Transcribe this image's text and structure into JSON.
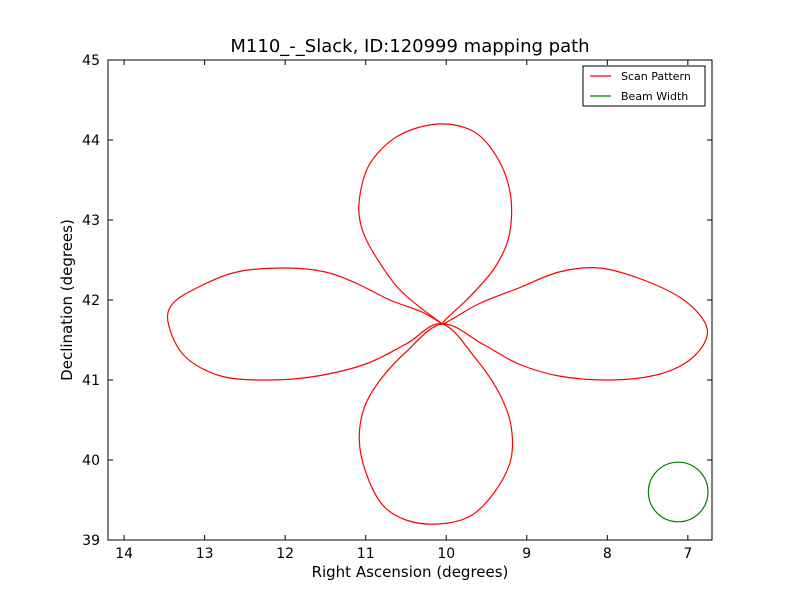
{
  "chart_data": {
    "type": "line",
    "title": "M110_-_Slack, ID:120999 mapping path",
    "xlabel": "Right Ascension (degrees)",
    "ylabel": "Declination (degrees)",
    "xlim": [
      14.2,
      6.7
    ],
    "ylim": [
      39,
      45
    ],
    "x_reversed": true,
    "xticks": [
      14,
      13,
      12,
      11,
      10,
      9,
      8,
      7
    ],
    "yticks": [
      39,
      40,
      41,
      42,
      43,
      44,
      45
    ],
    "grid": false,
    "legend": {
      "placement": "top-right",
      "entries": [
        "Scan Pattern",
        "Beam Width"
      ]
    },
    "series": [
      {
        "name": "Scan Pattern",
        "color": "#ff0000",
        "shape": "four-petal rosette centered near RA 10.05, Dec 41.7",
        "x": [
          10.05,
          10.55,
          10.88,
          11.05,
          11.08,
          10.95,
          10.6,
          10.1,
          9.65,
          9.35,
          9.2,
          9.22,
          9.4,
          9.7,
          10.05,
          9.6,
          9.1,
          8.6,
          8.1,
          7.55,
          7.05,
          6.78,
          6.8,
          7.05,
          7.45,
          8.0,
          8.6,
          9.1,
          9.55,
          10.05,
          10.5,
          10.82,
          11.02,
          11.08,
          11.0,
          10.8,
          10.5,
          10.1,
          9.7,
          9.4,
          9.2,
          9.2,
          9.35,
          9.62,
          10.05,
          10.5,
          11.0,
          11.6,
          12.2,
          12.8,
          13.25,
          13.45,
          13.4,
          13.1,
          12.6,
          12.0,
          11.5,
          11.1,
          10.7,
          10.3,
          10.05
        ],
        "y": [
          41.7,
          42.1,
          42.55,
          42.9,
          43.25,
          43.7,
          44.05,
          44.2,
          44.1,
          43.75,
          43.3,
          42.8,
          42.4,
          42.05,
          41.7,
          41.95,
          42.15,
          42.35,
          42.4,
          42.25,
          42.0,
          41.7,
          41.45,
          41.2,
          41.05,
          41.0,
          41.05,
          41.2,
          41.45,
          41.7,
          41.35,
          41.0,
          40.65,
          40.25,
          39.85,
          39.45,
          39.25,
          39.2,
          39.3,
          39.6,
          40.0,
          40.45,
          40.85,
          41.25,
          41.7,
          41.45,
          41.2,
          41.05,
          41.0,
          41.05,
          41.3,
          41.7,
          41.95,
          42.15,
          42.35,
          42.4,
          42.35,
          42.2,
          42.0,
          41.85,
          41.7
        ]
      },
      {
        "name": "Beam Width",
        "color": "#008000",
        "type": "circle",
        "center": [
          7.12,
          39.6
        ],
        "radius_deg": 0.37
      }
    ]
  }
}
